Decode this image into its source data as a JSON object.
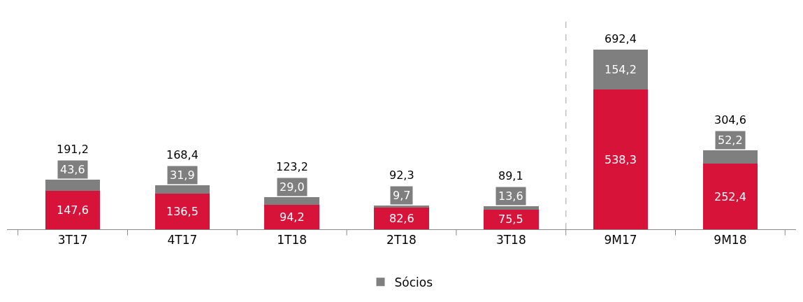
{
  "chart_data": {
    "type": "bar",
    "stacked": true,
    "legend": "bottom",
    "categories": [
      "3T17",
      "4T17",
      "1T18",
      "2T18",
      "3T18",
      "9M17",
      "9M18"
    ],
    "series": [
      {
        "color": "#d7133a",
        "values": [
          147.6,
          136.5,
          94.2,
          82.6,
          75.5,
          538.3,
          252.4
        ],
        "value_labels": [
          "147,6",
          "136,5",
          "94,2",
          "82,6",
          "75,5",
          "538,3",
          "252,4"
        ]
      },
      {
        "name": "Sócios",
        "color": "#7f7f7f",
        "values": [
          43.6,
          31.9,
          29.0,
          9.7,
          13.6,
          154.2,
          52.2
        ],
        "value_labels": [
          "43,6",
          "31,9",
          "29,0",
          "9,7",
          "13,6",
          "154,2",
          "52,2"
        ]
      }
    ],
    "totals": [
      "191,2",
      "168,4",
      "123,2",
      "92,3",
      "89,1",
      "692,4",
      "304,6"
    ]
  }
}
